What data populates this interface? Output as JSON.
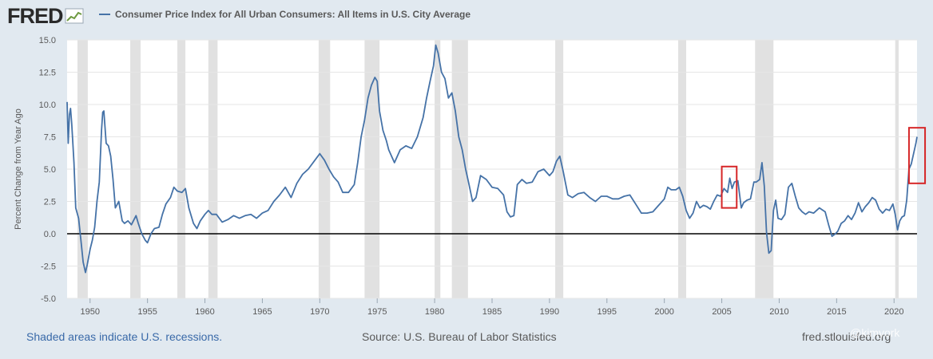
{
  "header": {
    "logo_text": "FRED",
    "series_title": "Consumer Price Index for All Urban Consumers: All Items in U.S. City Average"
  },
  "footer": {
    "recession_note": "Shaded areas indicate U.S. recessions.",
    "source": "Source: U.S. Bureau of Labor Statistics",
    "url": "fred.stlouisfed.org",
    "watermark": "@kimyork"
  },
  "colors": {
    "line": "#4572a7",
    "recession": "#e1e1e1",
    "highlight": "#d62728",
    "zero_line": "#000000",
    "grid": "#e6e6e6"
  },
  "chart_data": {
    "type": "line",
    "title": "",
    "xlabel": "",
    "ylabel": "Percent Change from Year Ago",
    "xlim": [
      1948.0,
      2022.0
    ],
    "ylim": [
      -5.0,
      15.0
    ],
    "yticks": [
      -5.0,
      -2.5,
      0.0,
      2.5,
      5.0,
      7.5,
      10.0,
      12.5,
      15.0
    ],
    "ytick_labels": [
      "-5.0",
      "-2.5",
      "0.0",
      "2.5",
      "5.0",
      "7.5",
      "10.0",
      "12.5",
      "15.0"
    ],
    "xticks": [
      1950,
      1955,
      1960,
      1965,
      1970,
      1975,
      1980,
      1985,
      1990,
      1995,
      2000,
      2005,
      2010,
      2015,
      2020
    ],
    "xtick_labels": [
      "1950",
      "1955",
      "1960",
      "1965",
      "1970",
      "1975",
      "1980",
      "1985",
      "1990",
      "1995",
      "2000",
      "2005",
      "2010",
      "2015",
      "2020"
    ],
    "grid": true,
    "zero_line": true,
    "recessions": [
      [
        1948.9,
        1949.8
      ],
      [
        1953.5,
        1954.4
      ],
      [
        1957.6,
        1958.3
      ],
      [
        1960.3,
        1961.1
      ],
      [
        1969.9,
        1970.9
      ],
      [
        1973.9,
        1975.2
      ],
      [
        1980.0,
        1980.5
      ],
      [
        1981.5,
        1982.9
      ],
      [
        1990.5,
        1991.2
      ],
      [
        2001.2,
        2001.9
      ],
      [
        2007.9,
        2009.5
      ],
      [
        2020.1,
        2020.4
      ]
    ],
    "highlight_boxes": [
      {
        "x": [
          2005.0,
          2006.3
        ],
        "y": [
          2.0,
          5.2
        ]
      },
      {
        "x": [
          2021.3,
          2022.7
        ],
        "y": [
          3.9,
          8.2
        ]
      }
    ],
    "series": [
      {
        "name": "Consumer Price Index for All Urban Consumers: All Items in U.S. City Average",
        "x": [
          1948.0,
          1948.1,
          1948.2,
          1948.3,
          1948.4,
          1948.5,
          1948.6,
          1948.75,
          1949.0,
          1949.2,
          1949.4,
          1949.6,
          1949.75,
          1950.0,
          1950.2,
          1950.4,
          1950.6,
          1950.8,
          1951.0,
          1951.1,
          1951.2,
          1951.4,
          1951.6,
          1951.8,
          1952.0,
          1952.2,
          1952.5,
          1952.8,
          1953.0,
          1953.3,
          1953.6,
          1954.0,
          1954.2,
          1954.5,
          1954.8,
          1955.0,
          1955.3,
          1955.6,
          1956.0,
          1956.3,
          1956.6,
          1957.0,
          1957.3,
          1957.6,
          1958.0,
          1958.3,
          1958.6,
          1959.0,
          1959.3,
          1959.6,
          1960.0,
          1960.3,
          1960.6,
          1961.0,
          1961.5,
          1962.0,
          1962.5,
          1963.0,
          1963.5,
          1964.0,
          1964.5,
          1965.0,
          1965.5,
          1966.0,
          1966.5,
          1967.0,
          1967.5,
          1968.0,
          1968.5,
          1969.0,
          1969.5,
          1970.0,
          1970.4,
          1970.8,
          1971.2,
          1971.6,
          1972.0,
          1972.5,
          1973.0,
          1973.3,
          1973.6,
          1973.9,
          1974.2,
          1974.5,
          1974.8,
          1975.0,
          1975.2,
          1975.5,
          1975.8,
          1976.0,
          1976.5,
          1977.0,
          1977.5,
          1978.0,
          1978.5,
          1979.0,
          1979.3,
          1979.6,
          1979.9,
          1980.1,
          1980.3,
          1980.6,
          1980.9,
          1981.2,
          1981.5,
          1981.8,
          1982.1,
          1982.4,
          1982.7,
          1983.0,
          1983.3,
          1983.6,
          1984.0,
          1984.5,
          1985.0,
          1985.5,
          1986.0,
          1986.3,
          1986.6,
          1986.9,
          1987.2,
          1987.6,
          1988.0,
          1988.5,
          1989.0,
          1989.5,
          1990.0,
          1990.3,
          1990.6,
          1990.9,
          1991.2,
          1991.6,
          1992.0,
          1992.5,
          1993.0,
          1993.5,
          1994.0,
          1994.5,
          1995.0,
          1995.5,
          1996.0,
          1996.5,
          1997.0,
          1997.5,
          1998.0,
          1998.5,
          1999.0,
          1999.5,
          2000.0,
          2000.3,
          2000.6,
          2001.0,
          2001.3,
          2001.6,
          2001.9,
          2002.2,
          2002.5,
          2002.8,
          2003.1,
          2003.4,
          2003.7,
          2004.0,
          2004.3,
          2004.6,
          2004.9,
          2005.2,
          2005.5,
          2005.7,
          2005.9,
          2006.1,
          2006.4,
          2006.7,
          2006.9,
          2007.2,
          2007.5,
          2007.8,
          2008.0,
          2008.3,
          2008.5,
          2008.7,
          2008.9,
          2009.1,
          2009.3,
          2009.5,
          2009.7,
          2009.9,
          2010.2,
          2010.5,
          2010.8,
          2011.1,
          2011.4,
          2011.7,
          2012.0,
          2012.3,
          2012.6,
          2013.0,
          2013.5,
          2014.0,
          2014.3,
          2014.6,
          2014.9,
          2015.1,
          2015.4,
          2015.7,
          2016.0,
          2016.3,
          2016.6,
          2016.9,
          2017.2,
          2017.5,
          2017.8,
          2018.1,
          2018.4,
          2018.7,
          2019.0,
          2019.3,
          2019.6,
          2019.9,
          2020.1,
          2020.3,
          2020.5,
          2020.7,
          2020.9,
          2021.1,
          2021.3,
          2021.5,
          2021.7,
          2021.9,
          2022.0
        ],
        "values": [
          10.2,
          7.0,
          9.2,
          9.7,
          8.5,
          7.0,
          5.5,
          2.0,
          1.2,
          -0.5,
          -2.2,
          -3.0,
          -2.4,
          -1.2,
          -0.5,
          0.5,
          2.5,
          4.0,
          8.0,
          9.4,
          9.5,
          7.0,
          6.8,
          6.0,
          4.2,
          2.0,
          2.5,
          1.0,
          0.8,
          1.0,
          0.7,
          1.4,
          0.8,
          0.0,
          -0.5,
          -0.7,
          0.0,
          0.4,
          0.5,
          1.5,
          2.3,
          2.8,
          3.6,
          3.3,
          3.2,
          3.5,
          2.0,
          0.8,
          0.4,
          1.0,
          1.5,
          1.8,
          1.5,
          1.5,
          0.9,
          1.1,
          1.4,
          1.2,
          1.4,
          1.5,
          1.2,
          1.6,
          1.8,
          2.5,
          3.0,
          3.6,
          2.8,
          3.9,
          4.6,
          5.0,
          5.6,
          6.2,
          5.7,
          5.0,
          4.4,
          4.0,
          3.2,
          3.2,
          3.8,
          5.5,
          7.5,
          8.8,
          10.5,
          11.5,
          12.1,
          11.8,
          9.5,
          8.0,
          7.2,
          6.5,
          5.5,
          6.5,
          6.8,
          6.6,
          7.5,
          9.0,
          10.5,
          11.8,
          13.0,
          14.6,
          14.0,
          12.5,
          12.0,
          10.5,
          10.9,
          9.5,
          7.5,
          6.5,
          5.0,
          3.8,
          2.5,
          2.8,
          4.5,
          4.2,
          3.6,
          3.5,
          3.0,
          1.7,
          1.3,
          1.4,
          3.8,
          4.2,
          3.9,
          4.0,
          4.8,
          5.0,
          4.5,
          4.8,
          5.6,
          6.0,
          4.8,
          3.0,
          2.8,
          3.1,
          3.2,
          2.8,
          2.5,
          2.9,
          2.9,
          2.7,
          2.7,
          2.9,
          3.0,
          2.3,
          1.6,
          1.6,
          1.7,
          2.2,
          2.7,
          3.6,
          3.4,
          3.4,
          3.6,
          2.9,
          1.8,
          1.2,
          1.6,
          2.5,
          2.0,
          2.2,
          2.1,
          1.9,
          2.5,
          3.0,
          2.9,
          3.5,
          3.2,
          4.3,
          3.5,
          4.0,
          4.1,
          2.0,
          2.4,
          2.6,
          2.7,
          4.0,
          4.0,
          4.2,
          5.5,
          3.7,
          0.1,
          -1.5,
          -1.3,
          1.8,
          2.6,
          1.2,
          1.1,
          1.5,
          3.6,
          3.9,
          2.9,
          2.0,
          1.7,
          1.5,
          1.7,
          1.6,
          2.0,
          1.7,
          0.7,
          -0.2,
          0.0,
          0.2,
          0.8,
          1.0,
          1.4,
          1.1,
          1.6,
          2.4,
          1.7,
          2.1,
          2.4,
          2.8,
          2.6,
          1.9,
          1.6,
          1.9,
          1.8,
          2.3,
          1.5,
          0.3,
          1.0,
          1.3,
          1.4,
          2.6,
          5.0,
          5.4,
          6.2,
          7.0,
          7.5
        ]
      }
    ]
  }
}
